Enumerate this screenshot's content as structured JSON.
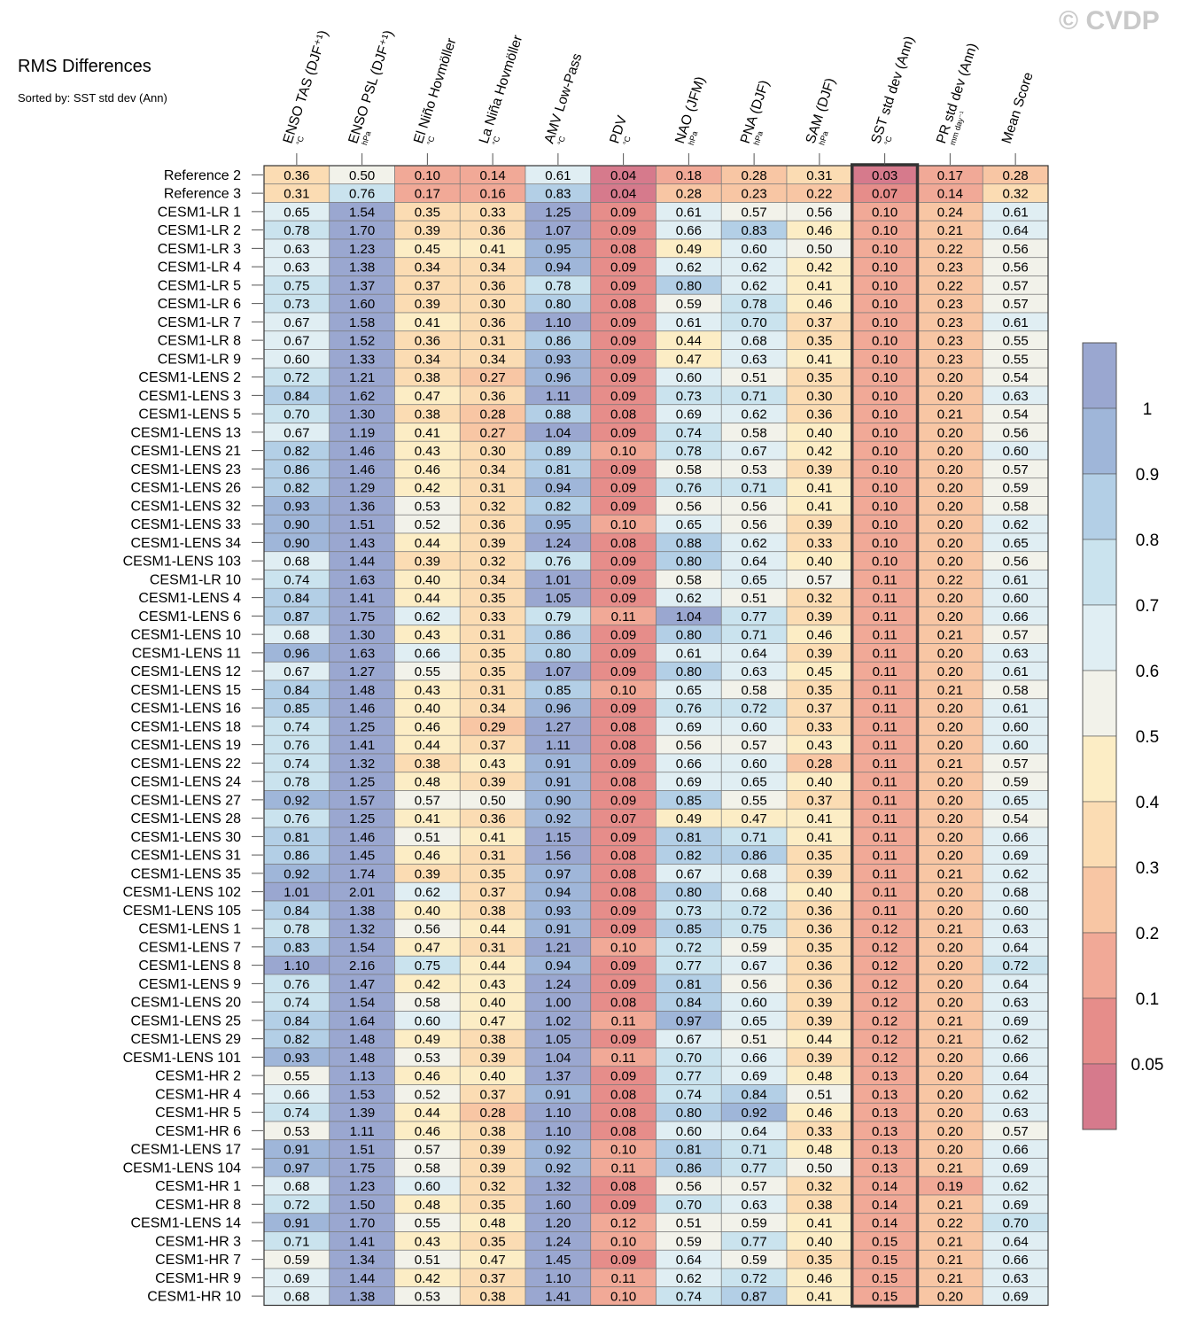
{
  "watermark": "© CVDP",
  "chart_data": {
    "type": "heatmap",
    "title": "RMS Differences",
    "subtitle": "Sorted by: SST std dev (Ann)",
    "highlight_column": 9,
    "columns": [
      {
        "label": "ENSO TAS (DJF⁺¹)",
        "unit": "°C"
      },
      {
        "label": "ENSO PSL (DJF⁺¹)",
        "unit": "hPa"
      },
      {
        "label": "El Niño Hovmöller",
        "unit": "°C"
      },
      {
        "label": "La Niña Hovmöller",
        "unit": "°C"
      },
      {
        "label": "AMV Low-Pass",
        "unit": "°C"
      },
      {
        "label": "PDV",
        "unit": "°C"
      },
      {
        "label": "NAO (JFM)",
        "unit": "hPa"
      },
      {
        "label": "PNA (DJF)",
        "unit": "hPa"
      },
      {
        "label": "SAM (DJF)",
        "unit": "hPa"
      },
      {
        "label": "SST std dev (Ann)",
        "unit": "°C"
      },
      {
        "label": "PR std dev (Ann)",
        "unit": "mm day⁻¹"
      },
      {
        "label": "Mean Score",
        "unit": ""
      }
    ],
    "rows": [
      "Reference 2",
      "Reference 3",
      "CESM1-LR 1",
      "CESM1-LR 2",
      "CESM1-LR 3",
      "CESM1-LR 4",
      "CESM1-LR 5",
      "CESM1-LR 6",
      "CESM1-LR 7",
      "CESM1-LR 8",
      "CESM1-LR 9",
      "CESM1-LENS 2",
      "CESM1-LENS 3",
      "CESM1-LENS 5",
      "CESM1-LENS 13",
      "CESM1-LENS 21",
      "CESM1-LENS 23",
      "CESM1-LENS 26",
      "CESM1-LENS 32",
      "CESM1-LENS 33",
      "CESM1-LENS 34",
      "CESM1-LENS 103",
      "CESM1-LR 10",
      "CESM1-LENS 4",
      "CESM1-LENS 6",
      "CESM1-LENS 10",
      "CESM1-LENS 11",
      "CESM1-LENS 12",
      "CESM1-LENS 15",
      "CESM1-LENS 16",
      "CESM1-LENS 18",
      "CESM1-LENS 19",
      "CESM1-LENS 22",
      "CESM1-LENS 24",
      "CESM1-LENS 27",
      "CESM1-LENS 28",
      "CESM1-LENS 30",
      "CESM1-LENS 31",
      "CESM1-LENS 35",
      "CESM1-LENS 102",
      "CESM1-LENS 105",
      "CESM1-LENS 1",
      "CESM1-LENS 7",
      "CESM1-LENS 8",
      "CESM1-LENS 9",
      "CESM1-LENS 20",
      "CESM1-LENS 25",
      "CESM1-LENS 29",
      "CESM1-LENS 101",
      "CESM1-HR 2",
      "CESM1-HR 4",
      "CESM1-HR 5",
      "CESM1-HR 6",
      "CESM1-LENS 17",
      "CESM1-LENS 104",
      "CESM1-HR 1",
      "CESM1-HR 8",
      "CESM1-LENS 14",
      "CESM1-HR 3",
      "CESM1-HR 7",
      "CESM1-HR 9",
      "CESM1-HR 10"
    ],
    "values": [
      [
        "0.36",
        "0.50",
        "0.10",
        "0.14",
        "0.61",
        "0.04",
        "0.18",
        "0.28",
        "0.31",
        "0.03",
        "0.17",
        "0.28"
      ],
      [
        "0.31",
        "0.76",
        "0.17",
        "0.16",
        "0.83",
        "0.04",
        "0.28",
        "0.23",
        "0.22",
        "0.07",
        "0.14",
        "0.32"
      ],
      [
        "0.65",
        "1.54",
        "0.35",
        "0.33",
        "1.25",
        "0.09",
        "0.61",
        "0.57",
        "0.56",
        "0.10",
        "0.24",
        "0.61"
      ],
      [
        "0.78",
        "1.70",
        "0.39",
        "0.36",
        "1.07",
        "0.09",
        "0.66",
        "0.83",
        "0.46",
        "0.10",
        "0.21",
        "0.64"
      ],
      [
        "0.63",
        "1.23",
        "0.45",
        "0.41",
        "0.95",
        "0.08",
        "0.49",
        "0.60",
        "0.50",
        "0.10",
        "0.22",
        "0.56"
      ],
      [
        "0.63",
        "1.38",
        "0.34",
        "0.34",
        "0.94",
        "0.09",
        "0.62",
        "0.62",
        "0.42",
        "0.10",
        "0.23",
        "0.56"
      ],
      [
        "0.75",
        "1.37",
        "0.37",
        "0.36",
        "0.78",
        "0.09",
        "0.80",
        "0.62",
        "0.41",
        "0.10",
        "0.22",
        "0.57"
      ],
      [
        "0.73",
        "1.60",
        "0.39",
        "0.30",
        "0.80",
        "0.08",
        "0.59",
        "0.78",
        "0.46",
        "0.10",
        "0.23",
        "0.57"
      ],
      [
        "0.67",
        "1.58",
        "0.41",
        "0.36",
        "1.10",
        "0.09",
        "0.61",
        "0.70",
        "0.37",
        "0.10",
        "0.23",
        "0.61"
      ],
      [
        "0.67",
        "1.52",
        "0.36",
        "0.31",
        "0.86",
        "0.09",
        "0.44",
        "0.68",
        "0.35",
        "0.10",
        "0.23",
        "0.55"
      ],
      [
        "0.60",
        "1.33",
        "0.34",
        "0.34",
        "0.93",
        "0.09",
        "0.47",
        "0.63",
        "0.41",
        "0.10",
        "0.23",
        "0.55"
      ],
      [
        "0.72",
        "1.21",
        "0.38",
        "0.27",
        "0.96",
        "0.09",
        "0.60",
        "0.51",
        "0.35",
        "0.10",
        "0.20",
        "0.54"
      ],
      [
        "0.84",
        "1.62",
        "0.47",
        "0.36",
        "1.11",
        "0.09",
        "0.73",
        "0.71",
        "0.30",
        "0.10",
        "0.20",
        "0.63"
      ],
      [
        "0.70",
        "1.30",
        "0.38",
        "0.28",
        "0.88",
        "0.08",
        "0.69",
        "0.62",
        "0.36",
        "0.10",
        "0.21",
        "0.54"
      ],
      [
        "0.67",
        "1.19",
        "0.41",
        "0.27",
        "1.04",
        "0.09",
        "0.74",
        "0.58",
        "0.40",
        "0.10",
        "0.20",
        "0.56"
      ],
      [
        "0.82",
        "1.46",
        "0.43",
        "0.30",
        "0.89",
        "0.10",
        "0.78",
        "0.67",
        "0.42",
        "0.10",
        "0.20",
        "0.60"
      ],
      [
        "0.86",
        "1.46",
        "0.46",
        "0.34",
        "0.81",
        "0.09",
        "0.58",
        "0.53",
        "0.39",
        "0.10",
        "0.20",
        "0.57"
      ],
      [
        "0.82",
        "1.29",
        "0.42",
        "0.31",
        "0.94",
        "0.09",
        "0.76",
        "0.71",
        "0.41",
        "0.10",
        "0.20",
        "0.59"
      ],
      [
        "0.93",
        "1.36",
        "0.53",
        "0.32",
        "0.82",
        "0.09",
        "0.56",
        "0.56",
        "0.41",
        "0.10",
        "0.20",
        "0.58"
      ],
      [
        "0.90",
        "1.51",
        "0.52",
        "0.36",
        "0.95",
        "0.10",
        "0.65",
        "0.56",
        "0.39",
        "0.10",
        "0.20",
        "0.62"
      ],
      [
        "0.90",
        "1.43",
        "0.44",
        "0.39",
        "1.24",
        "0.08",
        "0.88",
        "0.62",
        "0.33",
        "0.10",
        "0.20",
        "0.65"
      ],
      [
        "0.68",
        "1.44",
        "0.39",
        "0.32",
        "0.76",
        "0.09",
        "0.80",
        "0.64",
        "0.40",
        "0.10",
        "0.20",
        "0.56"
      ],
      [
        "0.74",
        "1.63",
        "0.40",
        "0.34",
        "1.01",
        "0.09",
        "0.58",
        "0.65",
        "0.57",
        "0.11",
        "0.22",
        "0.61"
      ],
      [
        "0.84",
        "1.41",
        "0.44",
        "0.35",
        "1.05",
        "0.09",
        "0.62",
        "0.51",
        "0.32",
        "0.11",
        "0.20",
        "0.60"
      ],
      [
        "0.87",
        "1.75",
        "0.62",
        "0.33",
        "0.79",
        "0.11",
        "1.04",
        "0.77",
        "0.39",
        "0.11",
        "0.20",
        "0.66"
      ],
      [
        "0.68",
        "1.30",
        "0.43",
        "0.31",
        "0.86",
        "0.09",
        "0.80",
        "0.71",
        "0.46",
        "0.11",
        "0.21",
        "0.57"
      ],
      [
        "0.96",
        "1.63",
        "0.66",
        "0.35",
        "0.80",
        "0.09",
        "0.61",
        "0.64",
        "0.39",
        "0.11",
        "0.20",
        "0.63"
      ],
      [
        "0.67",
        "1.27",
        "0.55",
        "0.35",
        "1.07",
        "0.09",
        "0.80",
        "0.63",
        "0.45",
        "0.11",
        "0.20",
        "0.61"
      ],
      [
        "0.84",
        "1.48",
        "0.43",
        "0.31",
        "0.85",
        "0.10",
        "0.65",
        "0.58",
        "0.35",
        "0.11",
        "0.21",
        "0.58"
      ],
      [
        "0.85",
        "1.46",
        "0.40",
        "0.34",
        "0.96",
        "0.09",
        "0.76",
        "0.72",
        "0.37",
        "0.11",
        "0.20",
        "0.61"
      ],
      [
        "0.74",
        "1.25",
        "0.46",
        "0.29",
        "1.27",
        "0.08",
        "0.69",
        "0.60",
        "0.33",
        "0.11",
        "0.20",
        "0.60"
      ],
      [
        "0.76",
        "1.41",
        "0.44",
        "0.37",
        "1.11",
        "0.08",
        "0.56",
        "0.57",
        "0.43",
        "0.11",
        "0.20",
        "0.60"
      ],
      [
        "0.74",
        "1.32",
        "0.38",
        "0.43",
        "0.91",
        "0.09",
        "0.66",
        "0.60",
        "0.28",
        "0.11",
        "0.21",
        "0.57"
      ],
      [
        "0.78",
        "1.25",
        "0.48",
        "0.39",
        "0.91",
        "0.08",
        "0.69",
        "0.65",
        "0.40",
        "0.11",
        "0.20",
        "0.59"
      ],
      [
        "0.92",
        "1.57",
        "0.57",
        "0.50",
        "0.90",
        "0.09",
        "0.85",
        "0.55",
        "0.37",
        "0.11",
        "0.20",
        "0.65"
      ],
      [
        "0.76",
        "1.25",
        "0.41",
        "0.36",
        "0.92",
        "0.07",
        "0.49",
        "0.47",
        "0.41",
        "0.11",
        "0.20",
        "0.54"
      ],
      [
        "0.81",
        "1.46",
        "0.51",
        "0.41",
        "1.15",
        "0.09",
        "0.81",
        "0.71",
        "0.41",
        "0.11",
        "0.20",
        "0.66"
      ],
      [
        "0.86",
        "1.45",
        "0.46",
        "0.31",
        "1.56",
        "0.08",
        "0.82",
        "0.86",
        "0.35",
        "0.11",
        "0.20",
        "0.69"
      ],
      [
        "0.92",
        "1.74",
        "0.39",
        "0.35",
        "0.97",
        "0.08",
        "0.67",
        "0.68",
        "0.39",
        "0.11",
        "0.21",
        "0.62"
      ],
      [
        "1.01",
        "2.01",
        "0.62",
        "0.37",
        "0.94",
        "0.08",
        "0.80",
        "0.68",
        "0.40",
        "0.11",
        "0.20",
        "0.68"
      ],
      [
        "0.84",
        "1.38",
        "0.40",
        "0.38",
        "0.93",
        "0.09",
        "0.73",
        "0.72",
        "0.36",
        "0.11",
        "0.20",
        "0.60"
      ],
      [
        "0.78",
        "1.32",
        "0.56",
        "0.44",
        "0.91",
        "0.09",
        "0.85",
        "0.75",
        "0.36",
        "0.12",
        "0.21",
        "0.63"
      ],
      [
        "0.83",
        "1.54",
        "0.47",
        "0.31",
        "1.21",
        "0.10",
        "0.72",
        "0.59",
        "0.35",
        "0.12",
        "0.20",
        "0.64"
      ],
      [
        "1.10",
        "2.16",
        "0.75",
        "0.44",
        "0.94",
        "0.09",
        "0.77",
        "0.67",
        "0.36",
        "0.12",
        "0.20",
        "0.72"
      ],
      [
        "0.76",
        "1.47",
        "0.42",
        "0.43",
        "1.24",
        "0.09",
        "0.81",
        "0.56",
        "0.36",
        "0.12",
        "0.20",
        "0.64"
      ],
      [
        "0.74",
        "1.54",
        "0.58",
        "0.40",
        "1.00",
        "0.08",
        "0.84",
        "0.60",
        "0.39",
        "0.12",
        "0.20",
        "0.63"
      ],
      [
        "0.84",
        "1.64",
        "0.60",
        "0.47",
        "1.02",
        "0.11",
        "0.97",
        "0.65",
        "0.39",
        "0.12",
        "0.21",
        "0.69"
      ],
      [
        "0.82",
        "1.48",
        "0.49",
        "0.38",
        "1.05",
        "0.09",
        "0.67",
        "0.51",
        "0.44",
        "0.12",
        "0.21",
        "0.62"
      ],
      [
        "0.93",
        "1.48",
        "0.53",
        "0.39",
        "1.04",
        "0.11",
        "0.70",
        "0.66",
        "0.39",
        "0.12",
        "0.20",
        "0.66"
      ],
      [
        "0.55",
        "1.13",
        "0.46",
        "0.40",
        "1.37",
        "0.09",
        "0.77",
        "0.69",
        "0.48",
        "0.13",
        "0.20",
        "0.64"
      ],
      [
        "0.66",
        "1.53",
        "0.52",
        "0.37",
        "0.91",
        "0.08",
        "0.74",
        "0.84",
        "0.51",
        "0.13",
        "0.20",
        "0.62"
      ],
      [
        "0.74",
        "1.39",
        "0.44",
        "0.28",
        "1.10",
        "0.08",
        "0.80",
        "0.92",
        "0.46",
        "0.13",
        "0.20",
        "0.63"
      ],
      [
        "0.53",
        "1.11",
        "0.46",
        "0.38",
        "1.10",
        "0.08",
        "0.60",
        "0.64",
        "0.33",
        "0.13",
        "0.20",
        "0.57"
      ],
      [
        "0.91",
        "1.51",
        "0.57",
        "0.39",
        "0.92",
        "0.10",
        "0.81",
        "0.71",
        "0.48",
        "0.13",
        "0.20",
        "0.66"
      ],
      [
        "0.97",
        "1.75",
        "0.58",
        "0.39",
        "0.92",
        "0.11",
        "0.86",
        "0.77",
        "0.50",
        "0.13",
        "0.21",
        "0.69"
      ],
      [
        "0.68",
        "1.23",
        "0.60",
        "0.32",
        "1.32",
        "0.08",
        "0.56",
        "0.57",
        "0.32",
        "0.14",
        "0.19",
        "0.62"
      ],
      [
        "0.72",
        "1.50",
        "0.48",
        "0.35",
        "1.60",
        "0.09",
        "0.70",
        "0.63",
        "0.38",
        "0.14",
        "0.21",
        "0.69"
      ],
      [
        "0.91",
        "1.70",
        "0.55",
        "0.48",
        "1.20",
        "0.12",
        "0.51",
        "0.59",
        "0.41",
        "0.14",
        "0.22",
        "0.70"
      ],
      [
        "0.71",
        "1.41",
        "0.43",
        "0.35",
        "1.24",
        "0.10",
        "0.59",
        "0.77",
        "0.40",
        "0.15",
        "0.21",
        "0.64"
      ],
      [
        "0.59",
        "1.34",
        "0.51",
        "0.47",
        "1.45",
        "0.09",
        "0.64",
        "0.59",
        "0.35",
        "0.15",
        "0.21",
        "0.66"
      ],
      [
        "0.69",
        "1.44",
        "0.42",
        "0.37",
        "1.10",
        "0.11",
        "0.62",
        "0.72",
        "0.46",
        "0.15",
        "0.21",
        "0.63"
      ],
      [
        "0.68",
        "1.38",
        "0.53",
        "0.38",
        "1.41",
        "0.10",
        "0.74",
        "0.87",
        "0.41",
        "0.15",
        "0.20",
        "0.69"
      ]
    ],
    "colorbar": {
      "levels": [
        0.05,
        0.1,
        0.2,
        0.3,
        0.4,
        0.5,
        0.6,
        0.7,
        0.8,
        0.9,
        1
      ],
      "tick_labels": [
        "0.05",
        "0.1",
        "0.2",
        "0.3",
        "0.4",
        "0.5",
        "0.6",
        "0.7",
        "0.8",
        "0.9",
        "1"
      ],
      "colors": [
        "#d67a8c",
        "#e68d8a",
        "#f1a997",
        "#f8c6a4",
        "#fbdcb3",
        "#fcedc5",
        "#f2f2ea",
        "#e0eef3",
        "#cae3ee",
        "#b3cfe6",
        "#9fb6d9",
        "#9aa7d0"
      ]
    }
  }
}
